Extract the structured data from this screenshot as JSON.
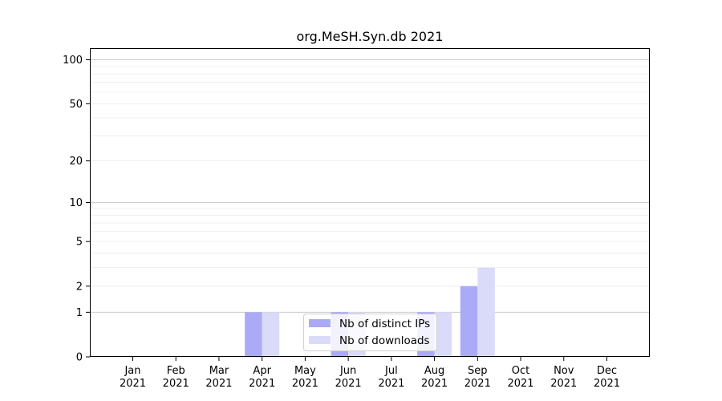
{
  "chart_data": {
    "type": "bar",
    "title": "org.MeSH.Syn.db 2021",
    "xlabel": "",
    "ylabel": "",
    "y_scale": "log(1+y)",
    "ylim": [
      0,
      120
    ],
    "y_ticks": [
      0,
      1,
      2,
      5,
      10,
      20,
      50,
      100
    ],
    "grid": "horizontal",
    "legend_position": "lower-center",
    "categories": [
      [
        "Jan",
        "2021"
      ],
      [
        "Feb",
        "2021"
      ],
      [
        "Mar",
        "2021"
      ],
      [
        "Apr",
        "2021"
      ],
      [
        "May",
        "2021"
      ],
      [
        "Jun",
        "2021"
      ],
      [
        "Jul",
        "2021"
      ],
      [
        "Aug",
        "2021"
      ],
      [
        "Sep",
        "2021"
      ],
      [
        "Oct",
        "2021"
      ],
      [
        "Nov",
        "2021"
      ],
      [
        "Dec",
        "2021"
      ]
    ],
    "series": [
      {
        "name": "Nb of distinct IPs",
        "color": "#aaaaf7",
        "values": [
          0,
          0,
          0,
          1,
          0,
          1,
          0,
          1,
          2,
          0,
          0,
          0
        ]
      },
      {
        "name": "Nb of downloads",
        "color": "#dadaf9",
        "values": [
          0,
          0,
          0,
          1,
          0,
          1,
          0,
          1,
          3,
          0,
          0,
          0
        ]
      }
    ]
  }
}
